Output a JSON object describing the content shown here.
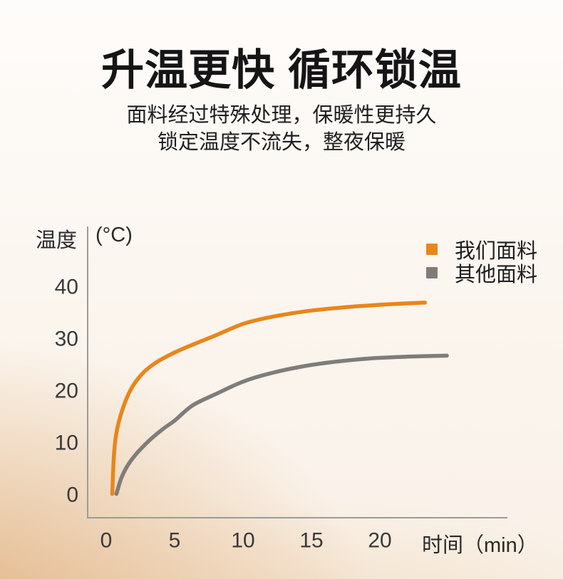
{
  "page": {
    "title": "升温更快 循环锁温",
    "subtitle_line1": "面料经过特殊处理，保暖性更持久",
    "subtitle_line2": "锁定温度不流失，整夜保暖"
  },
  "chart_data": {
    "type": "line",
    "title": "",
    "xlabel": "时间（min）",
    "ylabel": "温度",
    "ylabel_unit": "(°C)",
    "x_ticks": [
      0,
      5,
      10,
      15,
      20
    ],
    "y_ticks": [
      0,
      10,
      20,
      30,
      40
    ],
    "xlim": [
      0,
      25.5
    ],
    "ylim": [
      0,
      42
    ],
    "grid": false,
    "legend_position": "top-right",
    "axis_color": "#9b9b9b",
    "tick_color": "#3a3a3a",
    "series": [
      {
        "name": "我们面料",
        "color": "#E8861C",
        "points": [
          [
            0.45,
            0.2
          ],
          [
            0.55,
            7
          ],
          [
            0.75,
            12
          ],
          [
            1.2,
            16.5
          ],
          [
            1.8,
            20.3
          ],
          [
            2.6,
            23.2
          ],
          [
            3.6,
            25.4
          ],
          [
            5,
            27.4
          ],
          [
            6.5,
            29.1
          ],
          [
            8,
            30.7
          ],
          [
            10,
            32.9
          ],
          [
            12,
            34.2
          ],
          [
            14.5,
            35.3
          ],
          [
            17,
            36
          ],
          [
            19.5,
            36.5
          ],
          [
            21.5,
            36.8
          ],
          [
            23.3,
            37
          ]
        ]
      },
      {
        "name": "其他面料",
        "color": "#7F7D7B",
        "points": [
          [
            0.75,
            0.2
          ],
          [
            1.1,
            3.2
          ],
          [
            1.6,
            5.8
          ],
          [
            2.3,
            8.2
          ],
          [
            3.2,
            10.6
          ],
          [
            4.2,
            12.8
          ],
          [
            5,
            14.3
          ],
          [
            6.3,
            17.2
          ],
          [
            8,
            19.4
          ],
          [
            10,
            21.8
          ],
          [
            12,
            23.4
          ],
          [
            14.5,
            24.8
          ],
          [
            17,
            25.7
          ],
          [
            19.5,
            26.3
          ],
          [
            22,
            26.6
          ],
          [
            24.9,
            26.8
          ]
        ]
      }
    ]
  }
}
